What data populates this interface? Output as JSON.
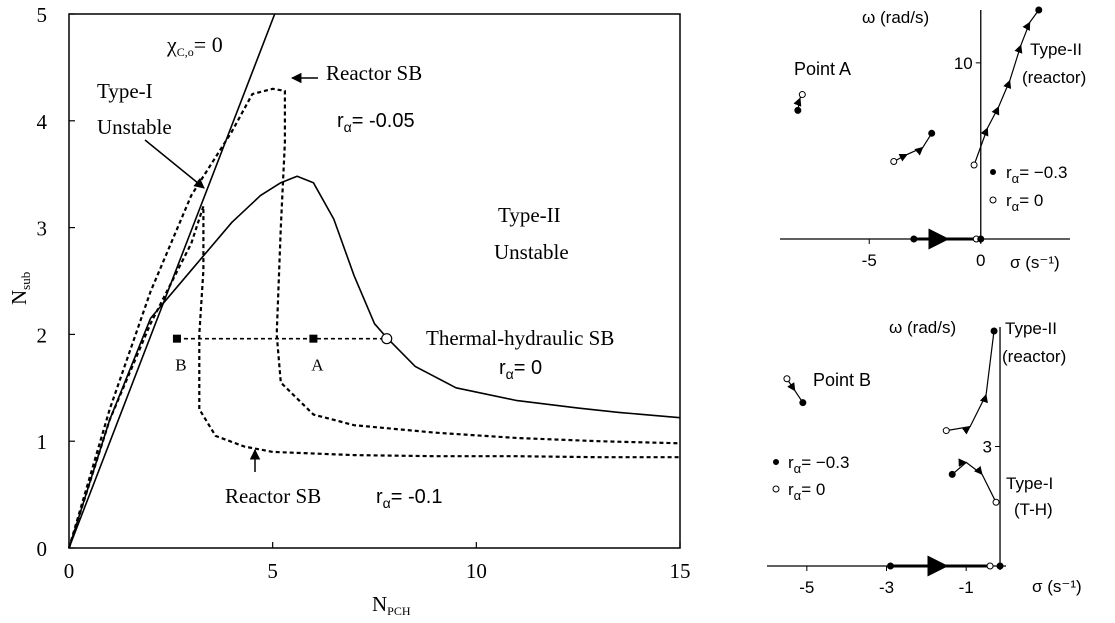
{
  "chart_data": [
    {
      "type": "line",
      "xlabel_main": "N",
      "xlabel_sub": "PCH",
      "ylabel_main": "N",
      "ylabel_sub": "sub",
      "xlim": [
        0,
        15
      ],
      "ylim": [
        0,
        5
      ],
      "xticks": [
        "0",
        "5",
        "10",
        "15"
      ],
      "yticks": [
        "0",
        "1",
        "2",
        "3",
        "4",
        "5"
      ],
      "grid": false,
      "series": [
        {
          "style": "solid",
          "x": [
            0,
            1,
            2,
            3,
            4,
            4.7,
            5.2,
            5.6,
            6.0,
            6.5,
            7.0,
            7.5,
            7.8,
            8.5,
            9.5,
            11,
            12.5,
            13.5,
            15
          ],
          "y": [
            0,
            1.2,
            2.15,
            2.6,
            3.05,
            3.3,
            3.42,
            3.48,
            3.42,
            3.08,
            2.55,
            2.1,
            1.97,
            1.7,
            1.5,
            1.38,
            1.31,
            1.27,
            1.22
          ]
        },
        {
          "style": "dotted",
          "x": [
            0,
            1,
            2,
            3,
            3.3,
            3.3,
            3.2,
            3.2,
            3.6,
            4.3,
            5,
            7,
            9,
            11,
            13,
            15
          ],
          "y": [
            0,
            1.2,
            2.1,
            2.85,
            3.2,
            2.6,
            2.0,
            1.3,
            1.05,
            0.95,
            0.9,
            0.87,
            0.86,
            0.86,
            0.85,
            0.85
          ]
        },
        {
          "style": "dotted",
          "x": [
            0,
            1,
            2,
            3,
            4,
            4.5,
            5,
            5.3,
            5.3,
            5.2,
            5.1,
            5.2,
            6,
            7,
            9,
            11,
            13,
            15
          ],
          "y": [
            0,
            1.3,
            2.4,
            3.3,
            3.9,
            4.25,
            4.3,
            4.28,
            3.8,
            3.0,
            2.0,
            1.55,
            1.25,
            1.15,
            1.08,
            1.03,
            1.0,
            0.98
          ]
        }
      ],
      "lines": [
        {
          "x": [
            0,
            5.05
          ],
          "y": [
            0,
            5
          ],
          "style": "solid"
        },
        {
          "x": [
            2.65,
            7.8
          ],
          "y": [
            1.96,
            1.96
          ],
          "style": "dotted"
        }
      ],
      "points": [
        {
          "x": 2.65,
          "y": 1.96,
          "marker": "square",
          "label": "B"
        },
        {
          "x": 6.0,
          "y": 1.96,
          "marker": "square",
          "label": "A"
        },
        {
          "x": 7.8,
          "y": 1.96,
          "marker": "open-circle"
        }
      ],
      "annotations": {
        "chi_main": "χ",
        "chi_sub": "C,o",
        "chi_val": "= 0",
        "type1": [
          "Type-I",
          "Unstable"
        ],
        "type2": [
          "Type-II",
          "Unstable"
        ],
        "reactor_sb_a": "Reactor SB",
        "r_alpha_a": "r",
        "alpha_a": "α",
        "val_a": "= -0.05",
        "th_sb": "Thermal-hydraulic  SB",
        "r_alpha_th": "r",
        "alpha_th": "α",
        "val_th": "= 0",
        "reactor_sb_b": "Reactor SB",
        "r_alpha_b": "r",
        "alpha_b": "α",
        "val_b": "= -0.1"
      }
    },
    {
      "type": "scatter",
      "title_point": "Point A",
      "xlabel": "σ (s⁻¹)",
      "ylabel": "ω (rad/s)",
      "xticks": [
        "-5",
        "0"
      ],
      "xtick_values": [
        -5,
        0
      ],
      "yticks": [
        "10"
      ],
      "ytick_values": [
        10
      ],
      "xlim": [
        -9,
        4
      ],
      "ylim": [
        0,
        13
      ],
      "legend": [
        "r",
        "α",
        "= −0.3",
        "= 0"
      ],
      "type_label": [
        "Type-II",
        "(reactor)"
      ],
      "trajectories": [
        {
          "x": [
            -8.2,
            -8.1,
            -8.0
          ],
          "y": [
            7.3,
            8.0,
            8.2
          ]
        },
        {
          "x": [
            -3.9,
            -3.3,
            -2.6,
            -2.2
          ],
          "y": [
            4.4,
            4.8,
            5.2,
            6.0
          ]
        },
        {
          "x": [
            -0.3,
            0.3,
            0.8,
            1.3,
            1.8,
            2.2,
            2.6
          ],
          "y": [
            4.2,
            6.3,
            7.5,
            9.0,
            11.0,
            12.3,
            13.0
          ]
        },
        {
          "x": [
            -3.0,
            -1.5,
            -0.2
          ],
          "y": [
            0,
            0,
            0
          ]
        }
      ],
      "points": [
        {
          "x": -8.2,
          "y": 7.3,
          "filled": true
        },
        {
          "x": -8.0,
          "y": 8.2,
          "filled": false
        },
        {
          "x": -2.2,
          "y": 6.0,
          "filled": true
        },
        {
          "x": -3.9,
          "y": 4.4,
          "filled": false
        },
        {
          "x": 2.6,
          "y": 13.0,
          "filled": true
        },
        {
          "x": -0.3,
          "y": 4.2,
          "filled": false
        },
        {
          "x": -3.0,
          "y": 0,
          "filled": true
        },
        {
          "x": -0.2,
          "y": 0,
          "filled": false
        },
        {
          "x": 0,
          "y": 0,
          "filled": true
        }
      ]
    },
    {
      "type": "scatter",
      "title_point": "Point B",
      "xlabel": "σ (s⁻¹)",
      "ylabel": "ω (rad/s)",
      "xticks": [
        "-5",
        "-3",
        "-1"
      ],
      "xtick_values": [
        -5,
        -3,
        -1
      ],
      "yticks": [
        "3"
      ],
      "ytick_values": [
        3
      ],
      "xlim": [
        -6,
        0
      ],
      "ylim": [
        0,
        6
      ],
      "legend": [
        "r",
        "α",
        "= −0.3",
        "= 0"
      ],
      "type2_label": [
        "Type-II",
        "(reactor)"
      ],
      "type1_label": [
        "Type-I",
        "(T-H)"
      ],
      "trajectories": [
        {
          "x": [
            -5.5,
            -5.3,
            -5.1
          ],
          "y": [
            4.7,
            4.4,
            4.1
          ]
        },
        {
          "x": [
            -1.5,
            -0.9,
            -0.5,
            -0.3
          ],
          "y": [
            3.4,
            3.5,
            4.3,
            5.9
          ]
        },
        {
          "x": [
            -1.35,
            -1.0,
            -0.6,
            -0.25
          ],
          "y": [
            2.3,
            2.6,
            2.3,
            1.6
          ]
        },
        {
          "x": [
            -2.9,
            -1.5,
            -0.4
          ],
          "y": [
            0,
            0,
            0
          ]
        }
      ],
      "points": [
        {
          "x": -5.1,
          "y": 4.1,
          "filled": true
        },
        {
          "x": -5.5,
          "y": 4.7,
          "filled": false
        },
        {
          "x": -0.3,
          "y": 5.9,
          "filled": true
        },
        {
          "x": -1.5,
          "y": 3.4,
          "filled": false
        },
        {
          "x": -1.35,
          "y": 2.3,
          "filled": true
        },
        {
          "x": -0.25,
          "y": 1.6,
          "filled": false
        },
        {
          "x": -2.9,
          "y": 0,
          "filled": true
        },
        {
          "x": -0.4,
          "y": 0,
          "filled": false
        },
        {
          "x": -0.15,
          "y": 0,
          "filled": true
        }
      ]
    }
  ]
}
